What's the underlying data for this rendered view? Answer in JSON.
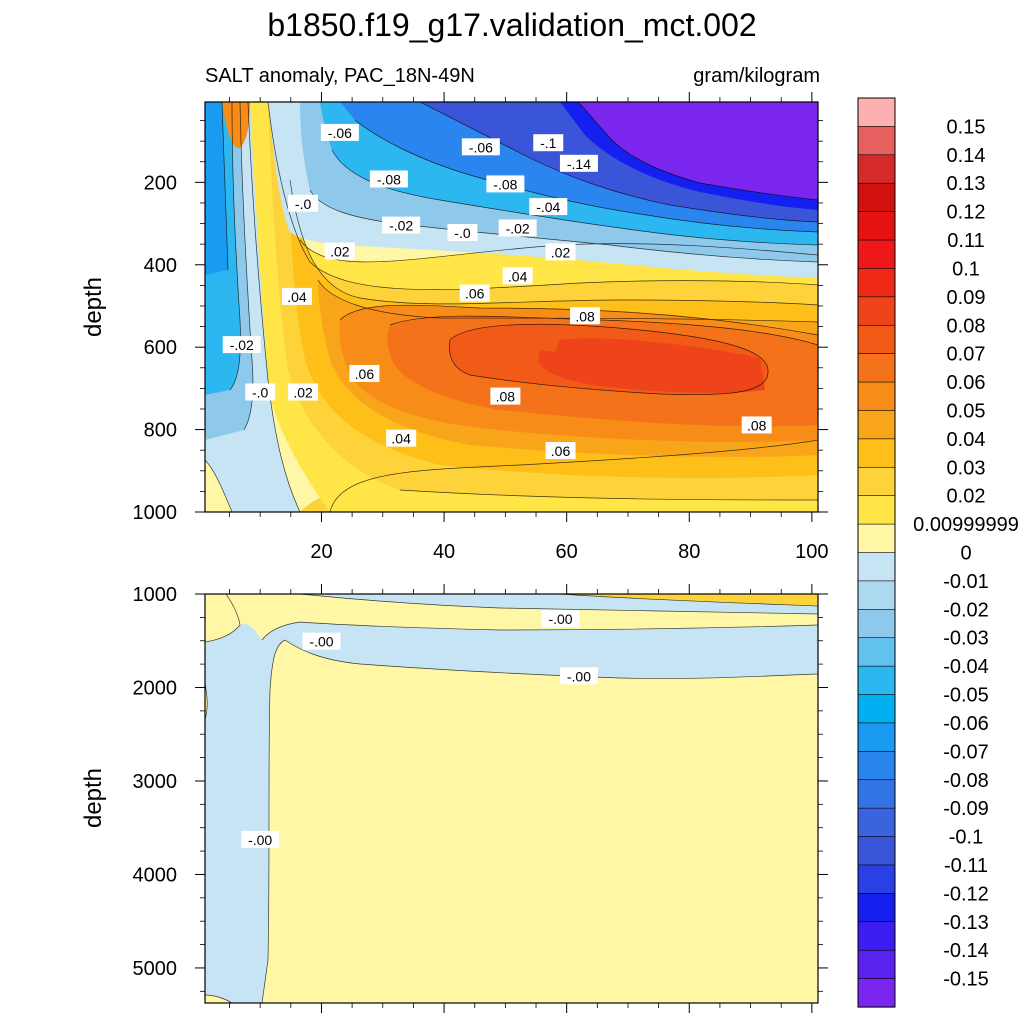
{
  "title": "b1850.f19_g17.validation_mct.002",
  "subtitle_left": "SALT anomaly, PAC_18N-49N",
  "subtitle_right": "gram/kilogram",
  "colors": {
    "neg": [
      "#c6e4f3",
      "#acd9ef",
      "#8ec9eb",
      "#62c2ee",
      "#2cb7f1",
      "#00b0f0",
      "#1a9af0",
      "#2a86ee",
      "#3273e6",
      "#3a63de",
      "#3a55d8",
      "#2a40e4",
      "#1520f0",
      "#3c1ef0",
      "#5a22ee",
      "#7b26ee"
    ],
    "pos": [
      "#fff6a6",
      "#ffe545",
      "#fed33a",
      "#fdbf18",
      "#f9a51a",
      "#f88c18",
      "#f4731a",
      "#f25b17",
      "#ef4319",
      "#f02a19",
      "#ef1818",
      "#e61111",
      "#d11010",
      "#d62a2a",
      "#e66060",
      "#fcb0b0"
    ]
  },
  "chart_data": [
    {
      "type": "heatmap",
      "panel": "upper",
      "ylabel": "depth",
      "xlim": [
        1,
        101
      ],
      "ylim": [
        1000,
        5
      ],
      "y_reversed": true,
      "x_ticks": [
        20,
        40,
        60,
        80,
        100
      ],
      "y_ticks": [
        200,
        400,
        600,
        800,
        1000
      ],
      "contour_labels": [
        {
          "text": "-.06",
          "x": 23,
          "y": 80
        },
        {
          "text": "-.06",
          "x": 46,
          "y": 115
        },
        {
          "text": "-.1",
          "x": 57,
          "y": 105
        },
        {
          "text": "-.14",
          "x": 62,
          "y": 155
        },
        {
          "text": "-.08",
          "x": 31,
          "y": 193
        },
        {
          "text": "-.08",
          "x": 50,
          "y": 205
        },
        {
          "text": "-.0",
          "x": 17,
          "y": 252
        },
        {
          "text": "-.04",
          "x": 57,
          "y": 260
        },
        {
          "text": "-.02",
          "x": 33,
          "y": 305
        },
        {
          "text": "-.0",
          "x": 43,
          "y": 323
        },
        {
          "text": "-.02",
          "x": 52,
          "y": 312
        },
        {
          "text": ".02",
          "x": 23,
          "y": 368
        },
        {
          "text": ".02",
          "x": 59,
          "y": 370
        },
        {
          "text": ".04",
          "x": 52,
          "y": 428
        },
        {
          "text": ".04",
          "x": 16,
          "y": 478
        },
        {
          "text": ".06",
          "x": 45,
          "y": 470
        },
        {
          "text": ".08",
          "x": 63,
          "y": 525
        },
        {
          "text": "-.02",
          "x": 7,
          "y": 595
        },
        {
          "text": ".06",
          "x": 27,
          "y": 665
        },
        {
          "text": "-.0",
          "x": 10,
          "y": 710
        },
        {
          "text": ".02",
          "x": 17,
          "y": 710
        },
        {
          "text": ".08",
          "x": 50,
          "y": 720
        },
        {
          "text": ".08",
          "x": 91,
          "y": 790
        },
        {
          "text": ".04",
          "x": 33,
          "y": 822
        },
        {
          "text": ".06",
          "x": 59,
          "y": 852
        }
      ]
    },
    {
      "type": "heatmap",
      "panel": "lower",
      "ylabel": "depth",
      "xlim": [
        1,
        101
      ],
      "ylim": [
        5375,
        1000
      ],
      "y_reversed": true,
      "x_ticks": [
        20,
        40,
        60,
        80,
        100
      ],
      "y_ticks": [
        1000,
        2000,
        3000,
        4000,
        5000
      ],
      "contour_labels": [
        {
          "text": "-.00",
          "x": 20,
          "y": 1510
        },
        {
          "text": "-.00",
          "x": 59,
          "y": 1270
        },
        {
          "text": "-.00",
          "x": 62,
          "y": 1880
        },
        {
          "text": "-.00",
          "x": 10,
          "y": 3630
        }
      ]
    }
  ],
  "colorbar": {
    "labels": [
      "0.15",
      "0.14",
      "0.13",
      "0.12",
      "0.11",
      "0.1",
      "0.09",
      "0.08",
      "0.07",
      "0.06",
      "0.05",
      "0.04",
      "0.03",
      "0.02",
      "0.00999999",
      "0",
      "-0.01",
      "-0.02",
      "-0.03",
      "-0.04",
      "-0.05",
      "-0.06",
      "-0.07",
      "-0.08",
      "-0.09",
      "-0.1",
      "-0.11",
      "-0.12",
      "-0.13",
      "-0.14",
      "-0.15"
    ]
  }
}
